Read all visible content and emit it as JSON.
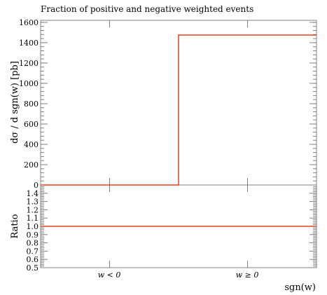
{
  "chart_data": [
    {
      "type": "line",
      "panel": "main",
      "title": "Fraction of positive and negative weighted events",
      "ylabel": "dσ / d sgn(w) [pb]",
      "categories": [
        "w < 0",
        "w ≥ 0"
      ],
      "bins": [
        -1,
        0,
        1
      ],
      "series": [
        {
          "color": "#e8401c",
          "values": [
            0,
            1475
          ]
        }
      ],
      "ylim": [
        0,
        1620
      ],
      "yticks": [
        0,
        200,
        400,
        600,
        800,
        1000,
        1200,
        1400,
        1600
      ],
      "ytick_labels": [
        "0",
        "200",
        "400",
        "600",
        "800",
        "1000",
        "1200",
        "1400",
        "1600"
      ],
      "grid": false,
      "style": "step"
    },
    {
      "type": "line",
      "panel": "ratio",
      "ylabel": "Ratio",
      "xlabel": "sgn(w)",
      "categories": [
        "w < 0",
        "w ≥ 0"
      ],
      "bins": [
        -1,
        0,
        1
      ],
      "series": [
        {
          "color": "#e8401c",
          "values": [
            1.0,
            1.0
          ]
        }
      ],
      "ylim": [
        0.5,
        1.5
      ],
      "yticks": [
        0.5,
        0.6,
        0.7,
        0.8,
        0.9,
        1.0,
        1.1,
        1.2,
        1.3,
        1.4
      ],
      "ytick_labels": [
        "0.5",
        "0.6",
        "0.7",
        "0.8",
        "0.9",
        "1.0",
        "1.1",
        "1.2",
        "1.3",
        "1.4"
      ],
      "grid": false,
      "style": "step"
    }
  ]
}
